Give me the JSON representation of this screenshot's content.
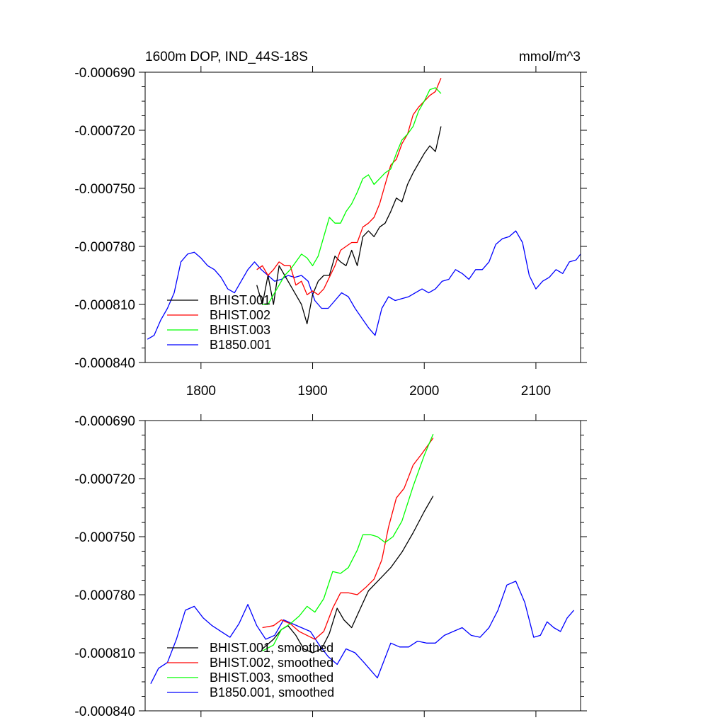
{
  "chart_data": [
    {
      "type": "line",
      "title": "1600m DOP, IND_44S-18S",
      "units": "mmol/m^3",
      "xlim": [
        1750,
        2140
      ],
      "ylim": [
        -0.00084,
        -0.00069
      ],
      "x_ticks": [
        1800,
        1900,
        2000,
        2100
      ],
      "x_tick_labels": [
        "1800",
        "1900",
        "2000",
        "2100"
      ],
      "y_ticks": [
        -0.00069,
        -0.00072,
        -0.00075,
        -0.00078,
        -0.00081,
        -0.00084
      ],
      "y_tick_labels": [
        "-0.000690",
        "-0.000720",
        "-0.000750",
        "-0.000780",
        "-0.000810",
        "-0.000840"
      ],
      "legend_position": "bottom-left",
      "series": [
        {
          "name": "BHIST.001",
          "color": "#000000",
          "x": [
            1850,
            1855,
            1860,
            1865,
            1870,
            1875,
            1880,
            1885,
            1890,
            1895,
            1900,
            1905,
            1910,
            1915,
            1920,
            1925,
            1930,
            1935,
            1940,
            1945,
            1950,
            1955,
            1960,
            1965,
            1970,
            1975,
            1980,
            1985,
            1990,
            1995,
            2000,
            2005,
            2010,
            2015
          ],
          "y": [
            -0.0008,
            -0.00081,
            -0.000795,
            -0.00081,
            -0.00079,
            -0.000795,
            -0.0008,
            -0.000805,
            -0.00081,
            -0.00082,
            -0.000805,
            -0.000798,
            -0.000795,
            -0.000795,
            -0.000785,
            -0.000788,
            -0.00079,
            -0.000782,
            -0.00079,
            -0.000775,
            -0.000772,
            -0.000775,
            -0.00077,
            -0.000768,
            -0.000762,
            -0.000755,
            -0.000757,
            -0.000748,
            -0.000742,
            -0.000737,
            -0.000732,
            -0.000728,
            -0.000731,
            -0.000718
          ]
        },
        {
          "name": "BHIST.002",
          "color": "#ff0000",
          "x": [
            1850,
            1855,
            1860,
            1865,
            1870,
            1875,
            1880,
            1885,
            1890,
            1895,
            1900,
            1905,
            1910,
            1915,
            1920,
            1925,
            1930,
            1935,
            1940,
            1945,
            1950,
            1955,
            1960,
            1965,
            1970,
            1975,
            1980,
            1985,
            1990,
            1995,
            2000,
            2005,
            2010,
            2015
          ],
          "y": [
            -0.000792,
            -0.00079,
            -0.000795,
            -0.000792,
            -0.000788,
            -0.00079,
            -0.00079,
            -0.0008,
            -0.000798,
            -0.000805,
            -0.000803,
            -0.000805,
            -0.000802,
            -0.000796,
            -0.00079,
            -0.000782,
            -0.00078,
            -0.000778,
            -0.000778,
            -0.00077,
            -0.000768,
            -0.000765,
            -0.000758,
            -0.000748,
            -0.000738,
            -0.000735,
            -0.000727,
            -0.000722,
            -0.000712,
            -0.000708,
            -0.000705,
            -0.000702,
            -0.0007,
            -0.000693
          ]
        },
        {
          "name": "BHIST.003",
          "color": "#00ff00",
          "x": [
            1855,
            1860,
            1865,
            1870,
            1875,
            1880,
            1885,
            1890,
            1895,
            1900,
            1905,
            1910,
            1915,
            1920,
            1925,
            1930,
            1935,
            1940,
            1945,
            1950,
            1955,
            1960,
            1965,
            1970,
            1975,
            1980,
            1985,
            1990,
            1995,
            2000,
            2005,
            2010,
            2015
          ],
          "y": [
            -0.00081,
            -0.00081,
            -0.000805,
            -0.0008,
            -0.000795,
            -0.000792,
            -0.000788,
            -0.000784,
            -0.000786,
            -0.00079,
            -0.000785,
            -0.000775,
            -0.000765,
            -0.000768,
            -0.000768,
            -0.000762,
            -0.000758,
            -0.000752,
            -0.000745,
            -0.000743,
            -0.000748,
            -0.000745,
            -0.000742,
            -0.00074,
            -0.000732,
            -0.000725,
            -0.000722,
            -0.000718,
            -0.00071,
            -0.000705,
            -0.000699,
            -0.000698,
            -0.000701
          ]
        },
        {
          "name": "B1850.001",
          "color": "#0000ff",
          "x": [
            1752,
            1758,
            1764,
            1770,
            1776,
            1782,
            1788,
            1794,
            1800,
            1806,
            1812,
            1818,
            1824,
            1830,
            1836,
            1842,
            1848,
            1854,
            1860,
            1866,
            1872,
            1878,
            1884,
            1890,
            1896,
            1902,
            1908,
            1914,
            1920,
            1926,
            1932,
            1938,
            1944,
            1950,
            1956,
            1962,
            1968,
            1974,
            1980,
            1986,
            1992,
            1998,
            2004,
            2010,
            2016,
            2022,
            2028,
            2034,
            2040,
            2046,
            2052,
            2058,
            2064,
            2070,
            2076,
            2082,
            2088,
            2094,
            2100,
            2106,
            2112,
            2118,
            2124,
            2130,
            2136,
            2140
          ],
          "y": [
            -0.000828,
            -0.000826,
            -0.000818,
            -0.000812,
            -0.000804,
            -0.000788,
            -0.000784,
            -0.000783,
            -0.000786,
            -0.00079,
            -0.000792,
            -0.000796,
            -0.000802,
            -0.000804,
            -0.000798,
            -0.000792,
            -0.000788,
            -0.000792,
            -0.000795,
            -0.000798,
            -0.000797,
            -0.000795,
            -0.000796,
            -0.000795,
            -0.000798,
            -0.000808,
            -0.000812,
            -0.000812,
            -0.000808,
            -0.000804,
            -0.000806,
            -0.000812,
            -0.000817,
            -0.000822,
            -0.000826,
            -0.000812,
            -0.000806,
            -0.000808,
            -0.000807,
            -0.000806,
            -0.000804,
            -0.000802,
            -0.000804,
            -0.000802,
            -0.000798,
            -0.000797,
            -0.000792,
            -0.000794,
            -0.000797,
            -0.000792,
            -0.000792,
            -0.000788,
            -0.000779,
            -0.000776,
            -0.000775,
            -0.000772,
            -0.000778,
            -0.000795,
            -0.000802,
            -0.000798,
            -0.000796,
            -0.000792,
            -0.000794,
            -0.000788,
            -0.000787,
            -0.000784
          ]
        }
      ]
    },
    {
      "type": "line",
      "xlim": [
        1750,
        2140
      ],
      "ylim": [
        -0.00084,
        -0.00069
      ],
      "x_ticks": [
        1800,
        1900,
        2000,
        2100
      ],
      "y_ticks": [
        -0.00069,
        -0.00072,
        -0.00075,
        -0.00078,
        -0.00081,
        -0.00084
      ],
      "y_tick_labels": [
        "-0.000690",
        "-0.000720",
        "-0.000750",
        "-0.000780",
        "-0.000810",
        "-0.000840"
      ],
      "legend_position": "bottom-left",
      "series": [
        {
          "name": "BHIST.001, smoothed",
          "color": "#000000",
          "x": [
            1855,
            1865,
            1872,
            1878,
            1885,
            1892,
            1900,
            1908,
            1915,
            1922,
            1928,
            1935,
            1942,
            1950,
            1960,
            1970,
            1980,
            1990,
            2000,
            2008
          ],
          "y": [
            -0.000808,
            -0.000803,
            -0.000798,
            -0.000796,
            -0.000801,
            -0.000808,
            -0.00081,
            -0.000808,
            -0.0008,
            -0.000787,
            -0.000793,
            -0.000797,
            -0.000788,
            -0.000778,
            -0.000772,
            -0.000766,
            -0.000758,
            -0.000748,
            -0.000737,
            -0.000729
          ]
        },
        {
          "name": "BHIST.002, smoothed",
          "color": "#ff0000",
          "x": [
            1855,
            1865,
            1872,
            1880,
            1888,
            1895,
            1902,
            1910,
            1918,
            1925,
            1932,
            1940,
            1948,
            1955,
            1962,
            1968,
            1975,
            1982,
            1990,
            1998,
            2008
          ],
          "y": [
            -0.000797,
            -0.000796,
            -0.000793,
            -0.000795,
            -0.000799,
            -0.000801,
            -0.000803,
            -0.000799,
            -0.000787,
            -0.000779,
            -0.000779,
            -0.00078,
            -0.000776,
            -0.000772,
            -0.000762,
            -0.000745,
            -0.00073,
            -0.000725,
            -0.000713,
            -0.000707,
            -0.000699
          ]
        },
        {
          "name": "BHIST.003, smoothed",
          "color": "#00ff00",
          "x": [
            1855,
            1865,
            1872,
            1880,
            1888,
            1895,
            1902,
            1910,
            1918,
            1925,
            1932,
            1940,
            1945,
            1952,
            1958,
            1965,
            1972,
            1980,
            1990,
            2000,
            2008
          ],
          "y": [
            -0.000809,
            -0.000806,
            -0.000798,
            -0.000795,
            -0.000791,
            -0.000786,
            -0.000789,
            -0.000782,
            -0.000768,
            -0.000769,
            -0.000766,
            -0.000757,
            -0.000749,
            -0.000749,
            -0.00075,
            -0.000753,
            -0.00075,
            -0.000742,
            -0.000724,
            -0.000708,
            -0.000697
          ]
        },
        {
          "name": "B1850.001, smoothed",
          "color": "#0000ff",
          "x": [
            1755,
            1762,
            1770,
            1778,
            1786,
            1794,
            1802,
            1810,
            1818,
            1826,
            1834,
            1842,
            1850,
            1858,
            1866,
            1874,
            1882,
            1890,
            1898,
            1906,
            1914,
            1922,
            1930,
            1938,
            1946,
            1952,
            1958,
            1964,
            1970,
            1978,
            1986,
            1994,
            2002,
            2010,
            2018,
            2026,
            2034,
            2042,
            2050,
            2058,
            2066,
            2074,
            2082,
            2090,
            2098,
            2104,
            2110,
            2116,
            2122,
            2128,
            2134
          ],
          "y": [
            -0.000826,
            -0.000818,
            -0.000815,
            -0.000803,
            -0.000788,
            -0.000786,
            -0.000792,
            -0.000796,
            -0.000799,
            -0.000802,
            -0.000795,
            -0.000785,
            -0.000796,
            -0.000803,
            -0.000801,
            -0.000793,
            -0.000795,
            -0.000797,
            -0.000799,
            -0.000806,
            -0.000812,
            -0.000816,
            -0.000808,
            -0.00081,
            -0.000815,
            -0.000819,
            -0.000823,
            -0.000814,
            -0.000805,
            -0.000807,
            -0.000807,
            -0.000804,
            -0.000805,
            -0.000805,
            -0.000801,
            -0.000799,
            -0.000797,
            -0.000801,
            -0.000802,
            -0.000797,
            -0.000788,
            -0.000775,
            -0.000773,
            -0.000784,
            -0.000802,
            -0.000801,
            -0.000794,
            -0.000797,
            -0.000799,
            -0.000792,
            -0.000788
          ]
        }
      ]
    }
  ]
}
